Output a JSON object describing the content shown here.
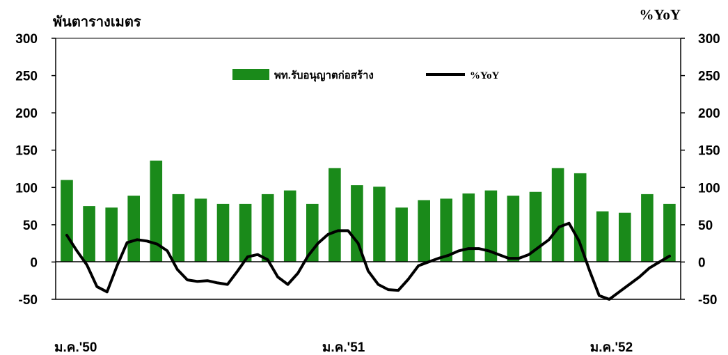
{
  "chart_data": {
    "type": "bar",
    "left_unit": "พันตารางเมตร",
    "right_unit": "%YoY",
    "y_left": {
      "ticks": [
        "300",
        "250",
        "200",
        "150",
        "100",
        "50",
        "0",
        "-50"
      ],
      "range": [
        -50,
        300
      ]
    },
    "y_right": {
      "ticks": [
        "300",
        "250",
        "200",
        "150",
        "100",
        "50",
        "0",
        "-50"
      ],
      "range": [
        -50,
        300
      ]
    },
    "x_labels": [
      {
        "text": "ม.ค.'50",
        "index": 0
      },
      {
        "text": "ม.ค.'51",
        "index": 12
      },
      {
        "text": "ม.ค.'52",
        "index": 24
      }
    ],
    "legend": {
      "bar": "พท.รับอนุญาตก่อสร้าง",
      "line": "%YoY"
    },
    "colors": {
      "bar": "#1a8a1a",
      "line": "#000000"
    },
    "series": [
      {
        "name": "พท.รับอนุญาตก่อสร้าง",
        "kind": "bar",
        "values": [
          110,
          75,
          73,
          89,
          136,
          91,
          85,
          78,
          78,
          91,
          96,
          78,
          126,
          103,
          101,
          73,
          83,
          85,
          92,
          96,
          89,
          94,
          126,
          119,
          68,
          66,
          91,
          78
        ]
      },
      {
        "name": "%YoY",
        "kind": "line",
        "values": [
          36,
          15,
          -4,
          -33,
          -40,
          -5,
          26,
          30,
          28,
          24,
          15,
          -10,
          -24,
          -26,
          -25,
          -28,
          -30,
          -12,
          7,
          10,
          3,
          -20,
          -30,
          -15,
          8,
          25,
          37,
          42,
          42,
          25,
          -12,
          -30,
          -37,
          -38,
          -23,
          -5,
          0,
          5,
          9,
          15,
          18,
          18,
          15,
          10,
          5,
          5,
          10,
          20,
          30,
          47,
          52,
          28,
          -10,
          -45,
          -50,
          -40,
          -30,
          -20,
          -8,
          0,
          8
        ]
      }
    ]
  }
}
